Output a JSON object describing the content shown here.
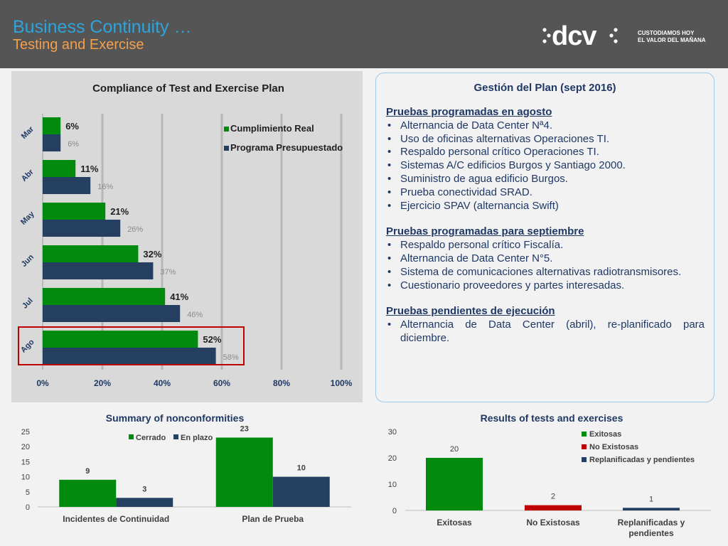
{
  "header": {
    "title": "Business Continuity …",
    "subtitle": "Testing and Exercise",
    "logo_text": "dcv",
    "tagline_line1": "CUSTODIAMOS HOY",
    "tagline_line2": "EL VALOR DEL MAÑANA"
  },
  "colors": {
    "header_bg": "#555555",
    "title": "#2ea3dc",
    "subtitle": "#f5a04a",
    "green": "#008a0e",
    "navy": "#243f60",
    "red": "#c00000",
    "text_navy": "#1f3864"
  },
  "plan": {
    "title": "Gestión del Plan (sept 2016)",
    "sections": [
      {
        "heading": "Pruebas programadas en agosto",
        "items": [
          "Alternancia de Data Center Nª4.",
          "Uso de oficinas alternativas Operaciones TI.",
          "Respaldo personal crítico Operaciones TI.",
          "Sistemas A/C edificios Burgos y Santiago 2000.",
          "Suministro de agua edificio Burgos.",
          "Prueba conectividad SRAD.",
          "Ejercicio SPAV (alternancia Swift)"
        ]
      },
      {
        "heading": "Pruebas programadas para septiembre",
        "items": [
          "Respaldo personal crítico Fiscalía.",
          "Alternancia de Data Center N°5.",
          "Sistema de comunicaciones alternativas radiotransmisores.",
          "Cuestionario proveedores y partes interesadas."
        ]
      },
      {
        "heading": "Pruebas pendientes de ejecución",
        "items": [
          "Alternancia de Data Center (abril), re-planificado para diciembre."
        ]
      }
    ]
  },
  "chart_data": [
    {
      "id": "compliance",
      "type": "bar",
      "orientation": "horizontal",
      "title": "Compliance of Test and Exercise Plan",
      "categories": [
        "Mar",
        "Abr",
        "May",
        "Jun",
        "Jul",
        "Ago"
      ],
      "series": [
        {
          "name": "Cumplimiento Real",
          "values": [
            6,
            11,
            21,
            32,
            41,
            52
          ],
          "labels": [
            "6%",
            "11%",
            "21%",
            "32%",
            "41%",
            "52%"
          ]
        },
        {
          "name": "Programa Presupuestado",
          "values": [
            6,
            16,
            26,
            37,
            46,
            58
          ],
          "labels": [
            "6%",
            "16%",
            "26%",
            "37%",
            "46%",
            "58%"
          ]
        }
      ],
      "xlim": [
        0,
        100
      ],
      "xticks": [
        0,
        20,
        40,
        60,
        80,
        100
      ],
      "xtick_labels": [
        "0%",
        "20%",
        "40%",
        "60%",
        "80%",
        "100%"
      ],
      "highlighted_category": "Ago",
      "legend": "right",
      "grid": true
    },
    {
      "id": "nonconformities",
      "type": "bar",
      "title": "Summary of nonconformities",
      "categories": [
        "Incidentes de Continuidad",
        "Plan de Prueba"
      ],
      "series": [
        {
          "name": "Cerrado",
          "values": [
            9,
            23
          ],
          "labels": [
            "9",
            "23"
          ]
        },
        {
          "name": "En plazo",
          "values": [
            3,
            10
          ],
          "labels": [
            "3",
            "10"
          ]
        }
      ],
      "ylim": [
        0,
        25
      ],
      "yticks": [
        0,
        5,
        10,
        15,
        20,
        25
      ],
      "ytick_labels": [
        "0",
        "5",
        "10",
        "15",
        "20",
        "25"
      ],
      "legend": "top",
      "grid": false
    },
    {
      "id": "results",
      "type": "bar",
      "title": "Results of tests and exercises",
      "categories": [
        "Exitosas",
        "No Existosas",
        "Replanificadas y pendientes"
      ],
      "category_lines": [
        [
          "Exitosas"
        ],
        [
          "No Existosas"
        ],
        [
          "Replanificadas y",
          "pendientes"
        ]
      ],
      "values": [
        20,
        2,
        1
      ],
      "value_labels": [
        "20",
        "2",
        "1"
      ],
      "legend_entries": [
        "Exitosas",
        "No Existosas",
        "Replanificadas y pendientes"
      ],
      "ylim": [
        0,
        30
      ],
      "yticks": [
        0,
        10,
        20,
        30
      ],
      "ytick_labels": [
        "0",
        "10",
        "20",
        "30"
      ],
      "legend": "top-right",
      "grid": false
    }
  ]
}
